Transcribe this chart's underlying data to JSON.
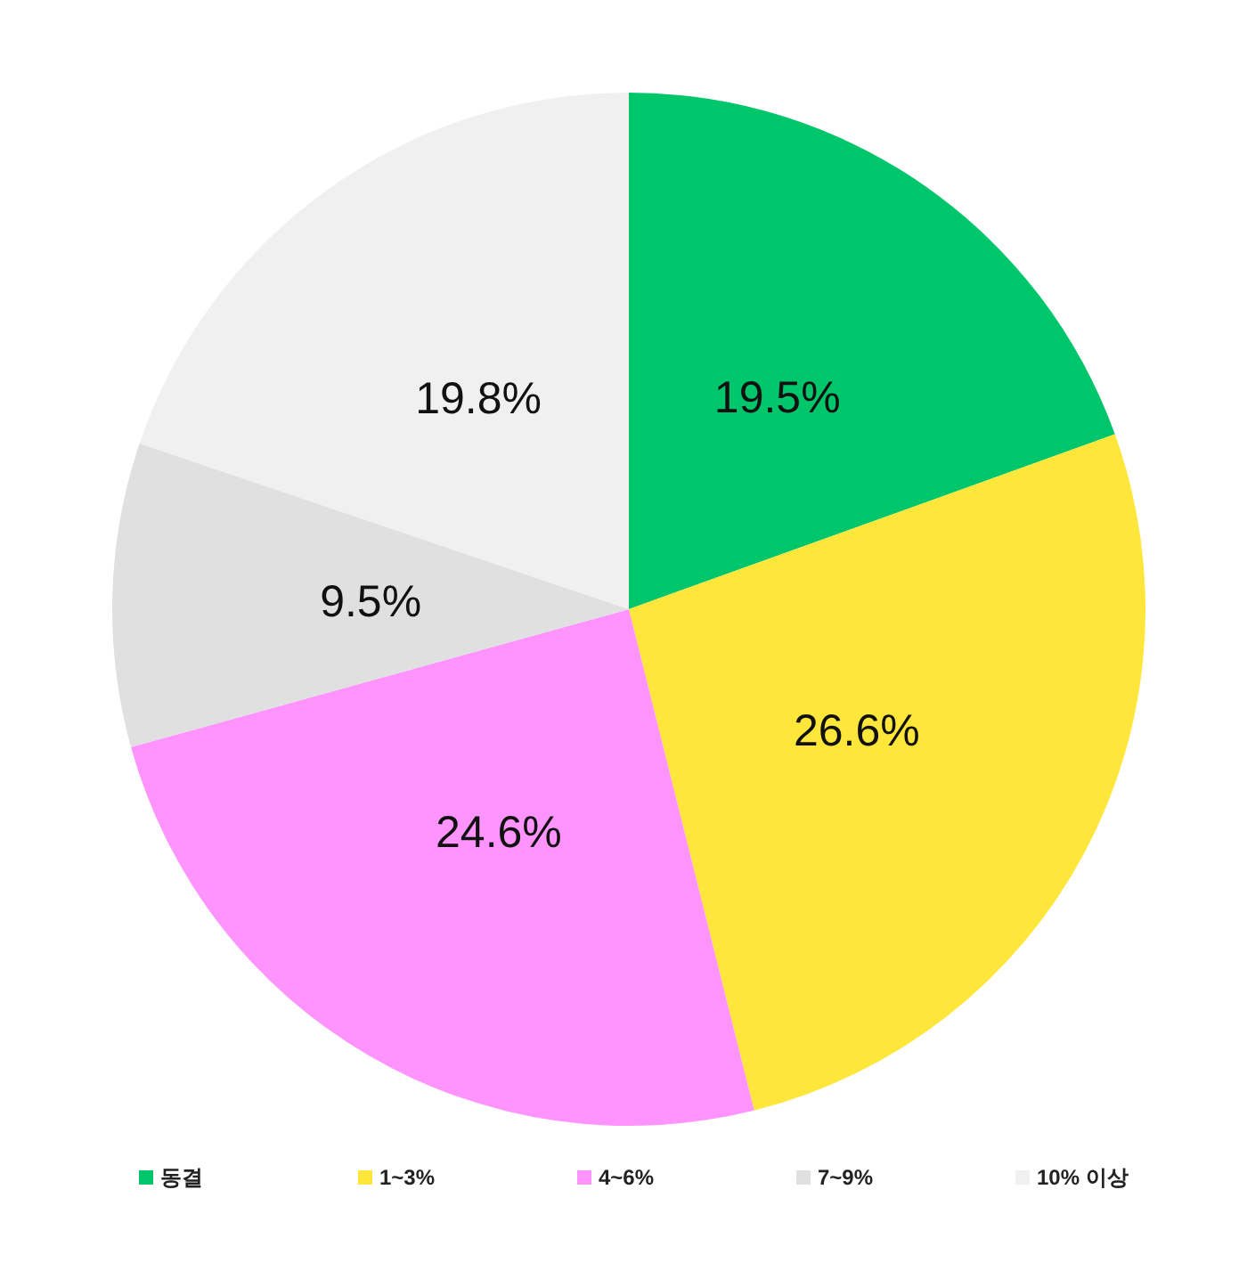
{
  "chart_data": {
    "type": "pie",
    "categories": [
      "동결",
      "1~3%",
      "4~6%",
      "7~9%",
      "10% 이상"
    ],
    "values": [
      19.5,
      26.6,
      24.6,
      9.5,
      19.8
    ],
    "colors": [
      "#00c66b",
      "#ffe63b",
      "#ff94ff",
      "#e0e0e0",
      "#f0f0f0"
    ],
    "value_labels": [
      "19.5%",
      "26.6%",
      "24.6%",
      "9.5%",
      "19.8%"
    ],
    "legend": "bottom"
  }
}
